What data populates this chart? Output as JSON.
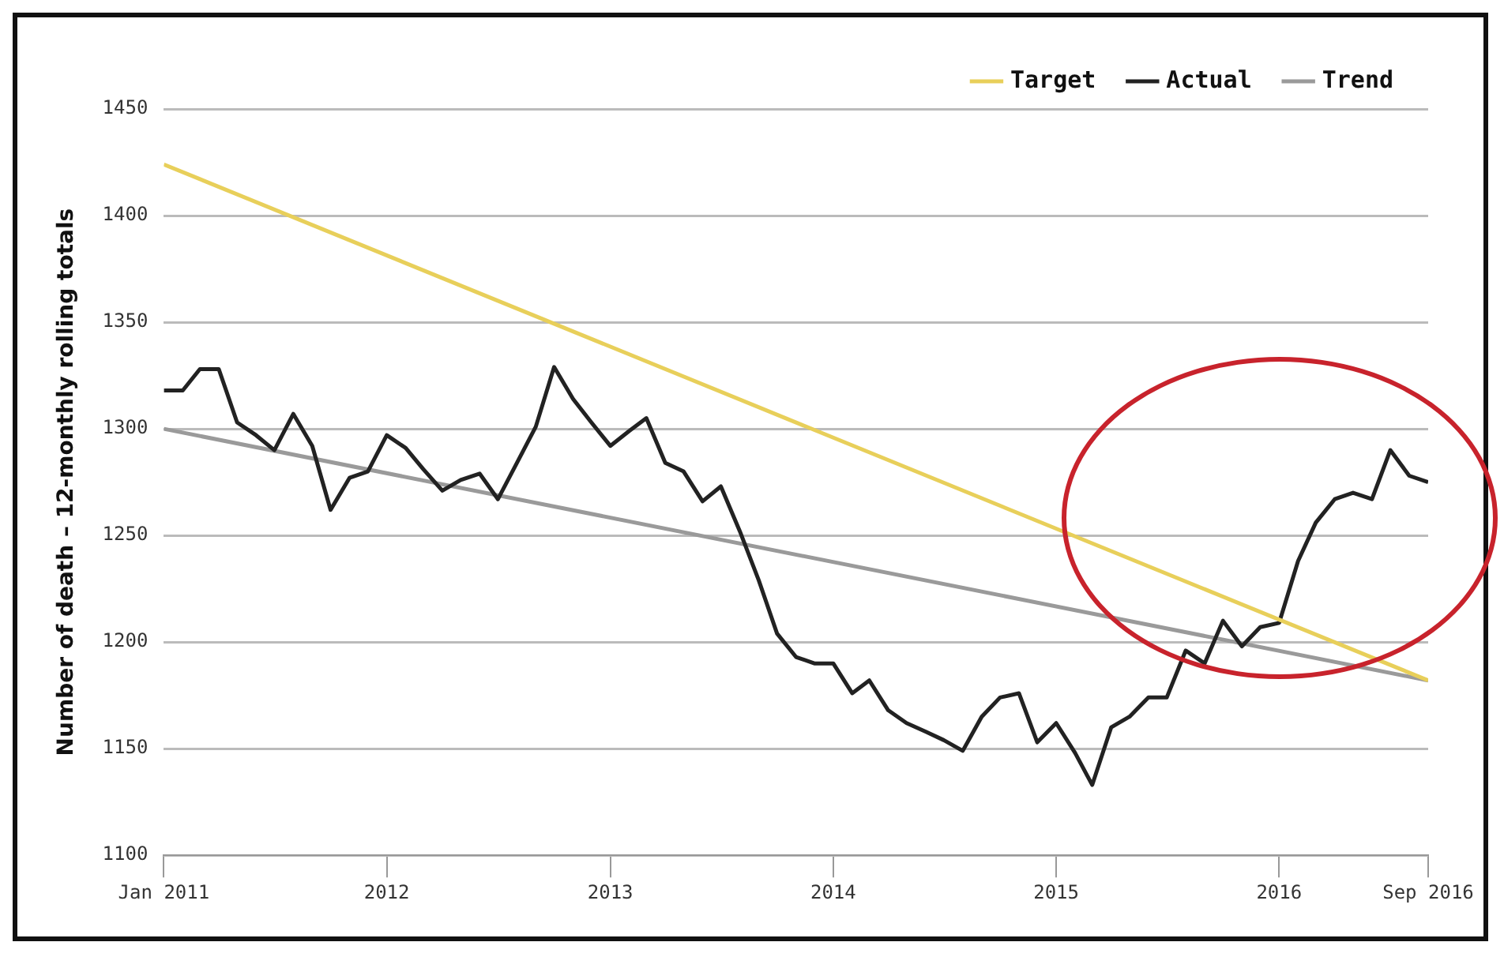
{
  "chart_data": {
    "type": "line",
    "ylabel": "Number of death – 12-monthly rolling totals",
    "ylim": [
      1100,
      1450
    ],
    "yticks": [
      1100,
      1150,
      1200,
      1250,
      1300,
      1350,
      1400,
      1450
    ],
    "xlim": [
      "2011-01",
      "2016-09"
    ],
    "xticks": [
      {
        "value": "2011-01",
        "label": "Jan 2011"
      },
      {
        "value": "2012-01",
        "label": "2012"
      },
      {
        "value": "2013-01",
        "label": "2013"
      },
      {
        "value": "2014-01",
        "label": "2014"
      },
      {
        "value": "2015-01",
        "label": "2015"
      },
      {
        "value": "2016-01",
        "label": "2016"
      },
      {
        "value": "2016-09",
        "label": "Sep 2016"
      }
    ],
    "grid": "y",
    "legend": "top right",
    "marker": "none",
    "line_style": "solid",
    "series": [
      {
        "name": "Target",
        "color": "#e8cf5a",
        "x": [
          "2011-01",
          "2016-09"
        ],
        "values": [
          1424,
          1182
        ]
      },
      {
        "name": "Actual",
        "color": "#222222",
        "x": [
          "2011-01",
          "2011-02",
          "2011-03",
          "2011-04",
          "2011-05",
          "2011-06",
          "2011-07",
          "2011-08",
          "2011-09",
          "2011-10",
          "2011-11",
          "2011-12",
          "2012-01",
          "2012-02",
          "2012-03",
          "2012-04",
          "2012-05",
          "2012-06",
          "2012-07",
          "2012-08",
          "2012-09",
          "2012-10",
          "2012-11",
          "2012-12",
          "2013-01",
          "2013-02",
          "2013-03",
          "2013-04",
          "2013-05",
          "2013-06",
          "2013-07",
          "2013-08",
          "2013-09",
          "2013-10",
          "2013-11",
          "2013-12",
          "2014-01",
          "2014-02",
          "2014-03",
          "2014-04",
          "2014-05",
          "2014-06",
          "2014-07",
          "2014-08",
          "2014-09",
          "2014-10",
          "2014-11",
          "2014-12",
          "2015-01",
          "2015-02",
          "2015-03",
          "2015-04",
          "2015-05",
          "2015-06",
          "2015-07",
          "2015-08",
          "2015-09",
          "2015-10",
          "2015-11",
          "2015-12",
          "2016-01",
          "2016-02",
          "2016-03",
          "2016-04",
          "2016-05",
          "2016-06",
          "2016-07",
          "2016-08",
          "2016-09"
        ],
        "values": [
          1318,
          1318,
          1328,
          1328,
          1303,
          1297,
          1290,
          1307,
          1292,
          1262,
          1277,
          1280,
          1297,
          1291,
          1281,
          1271,
          1276,
          1279,
          1267,
          1284,
          1301,
          1329,
          1314,
          1303,
          1292,
          1299,
          1305,
          1284,
          1280,
          1266,
          1273,
          1252,
          1229,
          1204,
          1193,
          1190,
          1190,
          1176,
          1182,
          1168,
          1162,
          1158,
          1154,
          1149,
          1165,
          1174,
          1176,
          1153,
          1162,
          1148,
          1133,
          1160,
          1165,
          1174,
          1174,
          1196,
          1190,
          1210,
          1198,
          1207,
          1209,
          1238,
          1256,
          1267,
          1270,
          1267,
          1290,
          1278,
          1275
        ]
      },
      {
        "name": "Trend",
        "color": "#9a9a9a",
        "x": [
          "2011-01",
          "2016-09"
        ],
        "values": [
          1300,
          1182
        ]
      }
    ]
  }
}
